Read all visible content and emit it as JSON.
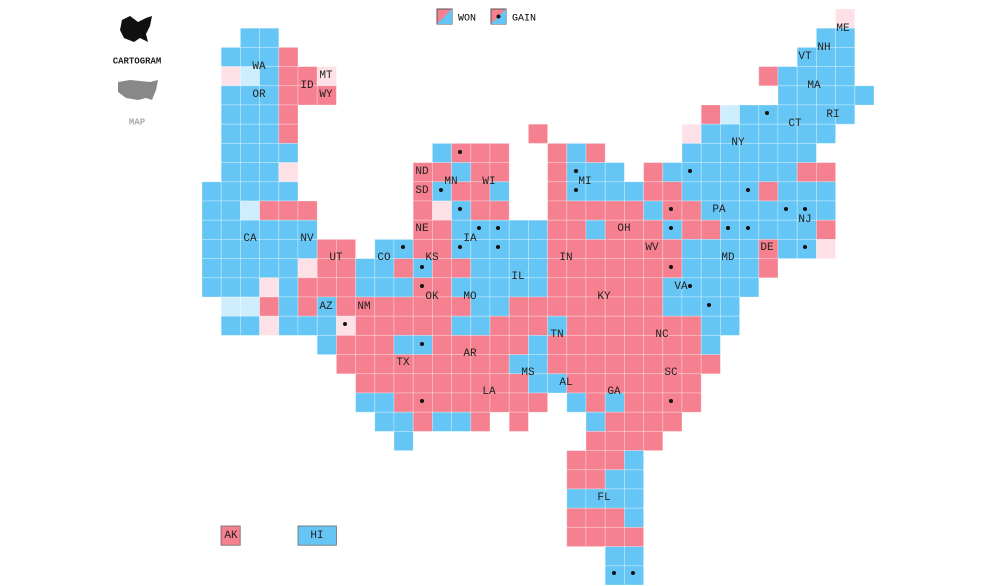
{
  "legend": {
    "won": "WON",
    "gain": "GAIN"
  },
  "toggle": {
    "cartogram": "CARTOGRAM",
    "map": "MAP"
  },
  "states": [
    "WA",
    "OR",
    "ID",
    "MT",
    "WY",
    "CA",
    "NV",
    "UT",
    "CO",
    "AZ",
    "NM",
    "TX",
    "ND",
    "SD",
    "NE",
    "KS",
    "OK",
    "MN",
    "IA",
    "MO",
    "AR",
    "LA",
    "WI",
    "IL",
    "MS",
    "AL",
    "TN",
    "KY",
    "IN",
    "MI",
    "OH",
    "WV",
    "VA",
    "NC",
    "SC",
    "GA",
    "FL",
    "PA",
    "NY",
    "MD",
    "DE",
    "NJ",
    "CT",
    "RI",
    "MA",
    "VT",
    "NH",
    "ME",
    "AK",
    "HI"
  ]
}
